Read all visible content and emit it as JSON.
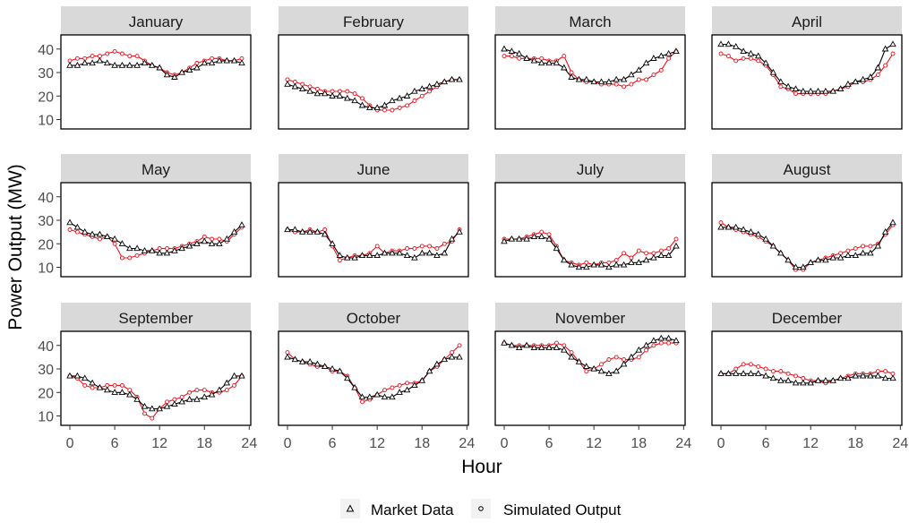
{
  "chart_data": {
    "type": "line",
    "xlabel": "Hour",
    "ylabel": "Power Output (MW)",
    "x_ticks": [
      0,
      6,
      12,
      18,
      24
    ],
    "y_ticks": [
      10,
      20,
      30,
      40
    ],
    "xlim": [
      -1.2,
      24.2
    ],
    "ylim": [
      6,
      46
    ],
    "grid": false,
    "legend_position": "bottom",
    "x": [
      0,
      1,
      2,
      3,
      4,
      5,
      6,
      7,
      8,
      9,
      10,
      11,
      12,
      13,
      14,
      15,
      16,
      17,
      18,
      19,
      20,
      21,
      22,
      23
    ],
    "series_styles": [
      {
        "name": "Market Data",
        "color": "#000000",
        "marker": "triangle"
      },
      {
        "name": "Simulated Output",
        "color": "#e8141e",
        "marker": "circle"
      }
    ],
    "panels": [
      {
        "title": "January",
        "series": [
          {
            "name": "Market Data",
            "values": [
              33,
              33,
              34,
              34,
              35,
              34,
              33,
              33,
              33,
              33,
              34,
              33,
              32,
              29,
              28,
              30,
              31,
              32,
              34,
              34,
              35,
              35,
              35,
              34
            ]
          },
          {
            "name": "Simulated Output",
            "values": [
              35,
              36,
              36,
              37,
              37,
              38,
              39,
              38,
              37,
              37,
              35,
              33,
              32,
              30,
              29,
              30,
              32,
              34,
              35,
              36,
              36,
              35,
              35,
              36
            ]
          }
        ]
      },
      {
        "title": "February",
        "series": [
          {
            "name": "Market Data",
            "values": [
              25,
              24,
              23,
              22,
              21,
              21,
              20,
              20,
              19,
              18,
              16,
              15,
              15,
              16,
              18,
              19,
              20,
              22,
              23,
              24,
              25,
              26,
              27,
              27
            ]
          },
          {
            "name": "Simulated Output",
            "values": [
              27,
              26,
              25,
              24,
              23,
              22,
              22,
              22,
              22,
              21,
              19,
              16,
              14,
              14,
              14,
              15,
              16,
              18,
              20,
              22,
              24,
              26,
              27,
              27
            ]
          }
        ]
      },
      {
        "title": "March",
        "series": [
          {
            "name": "Market Data",
            "values": [
              40,
              39,
              38,
              36,
              35,
              34,
              34,
              34,
              32,
              28,
              27,
              27,
              26,
              26,
              26,
              27,
              27,
              29,
              31,
              34,
              36,
              37,
              38,
              39
            ]
          },
          {
            "name": "Simulated Output",
            "values": [
              37,
              37,
              36,
              36,
              36,
              36,
              35,
              35,
              37,
              30,
              27,
              26,
              26,
              25,
              25,
              25,
              24,
              25,
              27,
              27,
              29,
              31,
              36,
              39
            ]
          }
        ]
      },
      {
        "title": "April",
        "series": [
          {
            "name": "Market Data",
            "values": [
              42,
              42,
              41,
              39,
              38,
              37,
              34,
              30,
              26,
              24,
              23,
              22,
              22,
              22,
              22,
              22,
              23,
              25,
              26,
              27,
              28,
              32,
              40,
              42
            ]
          },
          {
            "name": "Simulated Output",
            "values": [
              38,
              37,
              35,
              36,
              36,
              35,
              33,
              29,
              24,
              23,
              21,
              21,
              21,
              21,
              21,
              22,
              23,
              24,
              26,
              26,
              27,
              29,
              33,
              38
            ]
          }
        ]
      },
      {
        "title": "May",
        "series": [
          {
            "name": "Market Data",
            "values": [
              29,
              27,
              25,
              24,
              24,
              23,
              22,
              20,
              18,
              18,
              17,
              17,
              16,
              16,
              17,
              18,
              19,
              20,
              21,
              20,
              20,
              22,
              25,
              28
            ]
          },
          {
            "name": "Simulated Output",
            "values": [
              26,
              25,
              24,
              23,
              22,
              23,
              20,
              14,
              14,
              15,
              16,
              17,
              18,
              18,
              18,
              19,
              20,
              21,
              23,
              22,
              22,
              21,
              24,
              27
            ]
          }
        ]
      },
      {
        "title": "June",
        "series": [
          {
            "name": "Market Data",
            "values": [
              26,
              26,
              25,
              25,
              25,
              24,
              20,
              15,
              14,
              14,
              15,
              15,
              15,
              16,
              16,
              16,
              15,
              14,
              16,
              16,
              15,
              16,
              22,
              25
            ]
          },
          {
            "name": "Simulated Output",
            "values": [
              26,
              25,
              25,
              26,
              25,
              26,
              19,
              13,
              14,
              15,
              15,
              16,
              19,
              16,
              17,
              17,
              18,
              18,
              19,
              19,
              18,
              20,
              21,
              26
            ]
          }
        ]
      },
      {
        "title": "July",
        "series": [
          {
            "name": "Market Data",
            "values": [
              21,
              22,
              22,
              22,
              23,
              23,
              22,
              18,
              13,
              11,
              10,
              10,
              11,
              11,
              10,
              11,
              11,
              12,
              12,
              13,
              14,
              15,
              15,
              19
            ]
          },
          {
            "name": "Simulated Output",
            "values": [
              22,
              22,
              22,
              23,
              24,
              25,
              24,
              19,
              13,
              12,
              11,
              12,
              11,
              12,
              12,
              13,
              16,
              14,
              17,
              16,
              16,
              17,
              18,
              22
            ]
          }
        ]
      },
      {
        "title": "August",
        "series": [
          {
            "name": "Market Data",
            "values": [
              27,
              27,
              27,
              26,
              25,
              24,
              22,
              19,
              16,
              13,
              10,
              10,
              12,
              13,
              13,
              14,
              14,
              15,
              15,
              16,
              16,
              19,
              25,
              29
            ]
          },
          {
            "name": "Simulated Output",
            "values": [
              29,
              27,
              26,
              25,
              24,
              23,
              21,
              19,
              16,
              13,
              9,
              9,
              12,
              13,
              14,
              15,
              16,
              17,
              18,
              19,
              19,
              20,
              24,
              28
            ]
          }
        ]
      },
      {
        "title": "September",
        "series": [
          {
            "name": "Market Data",
            "values": [
              27,
              27,
              26,
              24,
              22,
              21,
              20,
              20,
              19,
              17,
              14,
              13,
              13,
              14,
              15,
              16,
              17,
              17,
              18,
              19,
              21,
              24,
              27,
              27
            ]
          },
          {
            "name": "Simulated Output",
            "values": [
              27,
              26,
              23,
              22,
              22,
              23,
              23,
              23,
              21,
              18,
              11,
              9,
              13,
              16,
              17,
              18,
              20,
              21,
              21,
              20,
              20,
              21,
              23,
              27
            ]
          }
        ]
      },
      {
        "title": "October",
        "series": [
          {
            "name": "Market Data",
            "values": [
              35,
              34,
              33,
              33,
              32,
              31,
              30,
              29,
              26,
              22,
              18,
              18,
              19,
              18,
              18,
              20,
              21,
              23,
              25,
              29,
              32,
              34,
              35,
              35
            ]
          },
          {
            "name": "Simulated Output",
            "values": [
              37,
              34,
              33,
              32,
              31,
              31,
              29,
              29,
              27,
              22,
              16,
              17,
              19,
              21,
              22,
              23,
              24,
              24,
              25,
              29,
              31,
              34,
              37,
              40
            ]
          }
        ]
      },
      {
        "title": "November",
        "series": [
          {
            "name": "Market Data",
            "values": [
              41,
              40,
              39,
              40,
              39,
              39,
              39,
              39,
              38,
              35,
              33,
              31,
              30,
              29,
              28,
              29,
              32,
              35,
              38,
              40,
              42,
              43,
              43,
              42
            ]
          },
          {
            "name": "Simulated Output",
            "values": [
              41,
              40,
              40,
              40,
              40,
              40,
              40,
              41,
              40,
              37,
              33,
              29,
              30,
              32,
              34,
              35,
              34,
              34,
              35,
              38,
              40,
              41,
              41,
              41
            ]
          }
        ]
      },
      {
        "title": "December",
        "series": [
          {
            "name": "Market Data",
            "values": [
              28,
              28,
              28,
              28,
              28,
              28,
              27,
              26,
              25,
              25,
              24,
              24,
              24,
              25,
              25,
              25,
              26,
              26,
              27,
              27,
              27,
              27,
              26,
              26
            ]
          },
          {
            "name": "Simulated Output",
            "values": [
              28,
              28,
              30,
              32,
              32,
              31,
              30,
              29,
              29,
              28,
              27,
              26,
              25,
              25,
              24,
              25,
              26,
              27,
              28,
              28,
              28,
              29,
              29,
              28
            ]
          }
        ]
      }
    ]
  }
}
